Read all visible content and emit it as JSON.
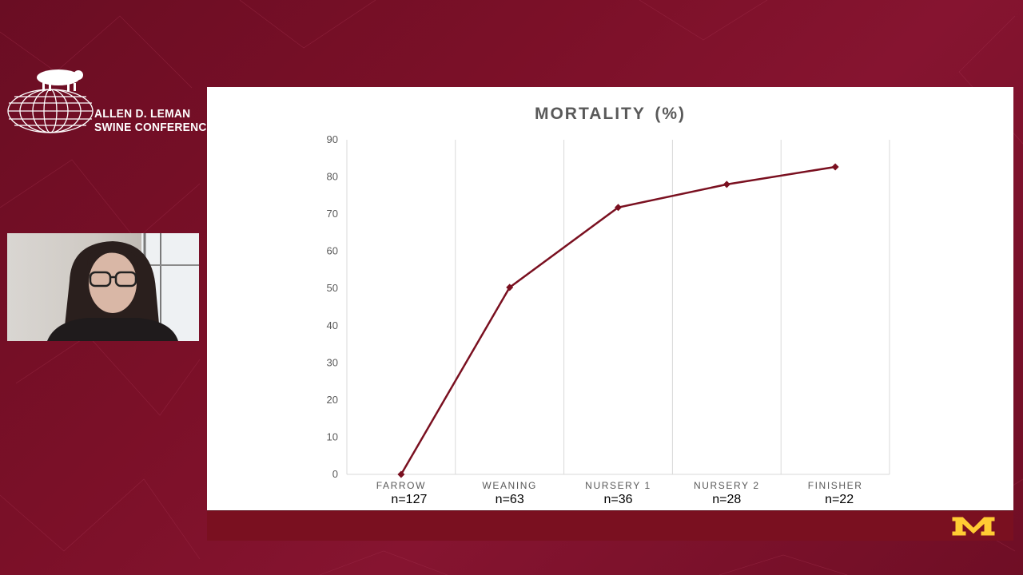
{
  "conference": {
    "line1": "ALLEN D. LEMAN",
    "line2": "SWINE CONFERENCE"
  },
  "webcam": {
    "icon": "presenter-video"
  },
  "footer": {
    "logo_icon": "university-m-logo",
    "logo_color": "#FFCC33"
  },
  "colors": {
    "background": "#7b1028",
    "series": "#7a1020",
    "footer": "#7a1020"
  },
  "chart_data": {
    "type": "line",
    "title": "MORTALITY (%)",
    "categories": [
      "FARROW",
      "WEANING",
      "NURSERY 1",
      "NURSERY 2",
      "FINISHER"
    ],
    "sample_sizes": [
      "n=127",
      "n=63",
      "n=36",
      "n=28",
      "n=22"
    ],
    "series": [
      {
        "values": [
          0,
          50.3,
          71.8,
          78.0,
          82.7
        ]
      }
    ],
    "ylim": [
      0,
      90
    ],
    "yticks": [
      0,
      10,
      20,
      30,
      40,
      50,
      60,
      70,
      80,
      90
    ],
    "grid": "vertical",
    "legend": "none"
  }
}
